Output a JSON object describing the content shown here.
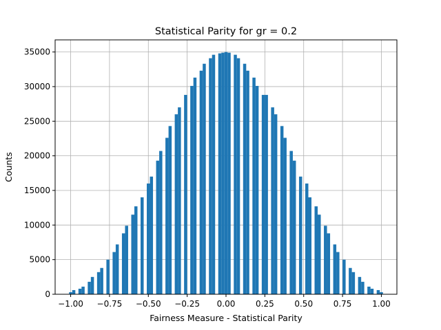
{
  "chart_data": {
    "type": "bar",
    "title": "Statistical Parity for gr = 0.2",
    "xlabel": "Fairness Measure - Statistical Parity",
    "ylabel": "Counts",
    "xlim": [
      -1.1,
      1.1
    ],
    "ylim": [
      0,
      36750
    ],
    "xticks": [
      -1.0,
      -0.75,
      -0.5,
      -0.25,
      0.0,
      0.25,
      0.5,
      0.75,
      1.0
    ],
    "xtick_labels": [
      "−1.00",
      "−0.75",
      "−0.50",
      "−0.25",
      "0.00",
      "0.25",
      "0.50",
      "0.75",
      "1.00"
    ],
    "yticks": [
      0,
      5000,
      10000,
      15000,
      20000,
      25000,
      30000,
      35000
    ],
    "ytick_labels": [
      "0",
      "5000",
      "10000",
      "15000",
      "20000",
      "25000",
      "30000",
      "35000"
    ],
    "grid": true,
    "bar_color": "#1f77b4",
    "bin_width": 0.02,
    "bins": [
      [
        -1.0,
        300
      ],
      [
        -0.98,
        600
      ],
      [
        -0.94,
        800
      ],
      [
        -0.92,
        1100
      ],
      [
        -0.88,
        1800
      ],
      [
        -0.86,
        2500
      ],
      [
        -0.82,
        3200
      ],
      [
        -0.8,
        3800
      ],
      [
        -0.76,
        5000
      ],
      [
        -0.72,
        6100
      ],
      [
        -0.7,
        7200
      ],
      [
        -0.66,
        8800
      ],
      [
        -0.64,
        9900
      ],
      [
        -0.6,
        11500
      ],
      [
        -0.58,
        12700
      ],
      [
        -0.54,
        14000
      ],
      [
        -0.5,
        16000
      ],
      [
        -0.48,
        17000
      ],
      [
        -0.44,
        19300
      ],
      [
        -0.42,
        20700
      ],
      [
        -0.38,
        22600
      ],
      [
        -0.36,
        24300
      ],
      [
        -0.32,
        26000
      ],
      [
        -0.3,
        27000
      ],
      [
        -0.26,
        28800
      ],
      [
        -0.22,
        30100
      ],
      [
        -0.2,
        31300
      ],
      [
        -0.16,
        32300
      ],
      [
        -0.14,
        33300
      ],
      [
        -0.1,
        34100
      ],
      [
        -0.08,
        34600
      ],
      [
        -0.04,
        34800
      ],
      [
        -0.02,
        34900
      ],
      [
        0.0,
        35000
      ],
      [
        0.02,
        34900
      ],
      [
        0.06,
        34600
      ],
      [
        0.08,
        34100
      ],
      [
        0.12,
        33300
      ],
      [
        0.14,
        32300
      ],
      [
        0.18,
        31300
      ],
      [
        0.2,
        30100
      ],
      [
        0.24,
        28800
      ],
      [
        0.26,
        28800
      ],
      [
        0.3,
        27000
      ],
      [
        0.32,
        26000
      ],
      [
        0.36,
        24300
      ],
      [
        0.38,
        22600
      ],
      [
        0.42,
        20700
      ],
      [
        0.44,
        19300
      ],
      [
        0.48,
        17000
      ],
      [
        0.52,
        16000
      ],
      [
        0.54,
        14000
      ],
      [
        0.58,
        12700
      ],
      [
        0.6,
        11500
      ],
      [
        0.64,
        9900
      ],
      [
        0.66,
        8800
      ],
      [
        0.7,
        7200
      ],
      [
        0.72,
        6100
      ],
      [
        0.76,
        5000
      ],
      [
        0.8,
        3800
      ],
      [
        0.82,
        3200
      ],
      [
        0.86,
        2500
      ],
      [
        0.88,
        1800
      ],
      [
        0.92,
        1100
      ],
      [
        0.94,
        800
      ],
      [
        0.98,
        600
      ],
      [
        1.0,
        300
      ]
    ]
  }
}
